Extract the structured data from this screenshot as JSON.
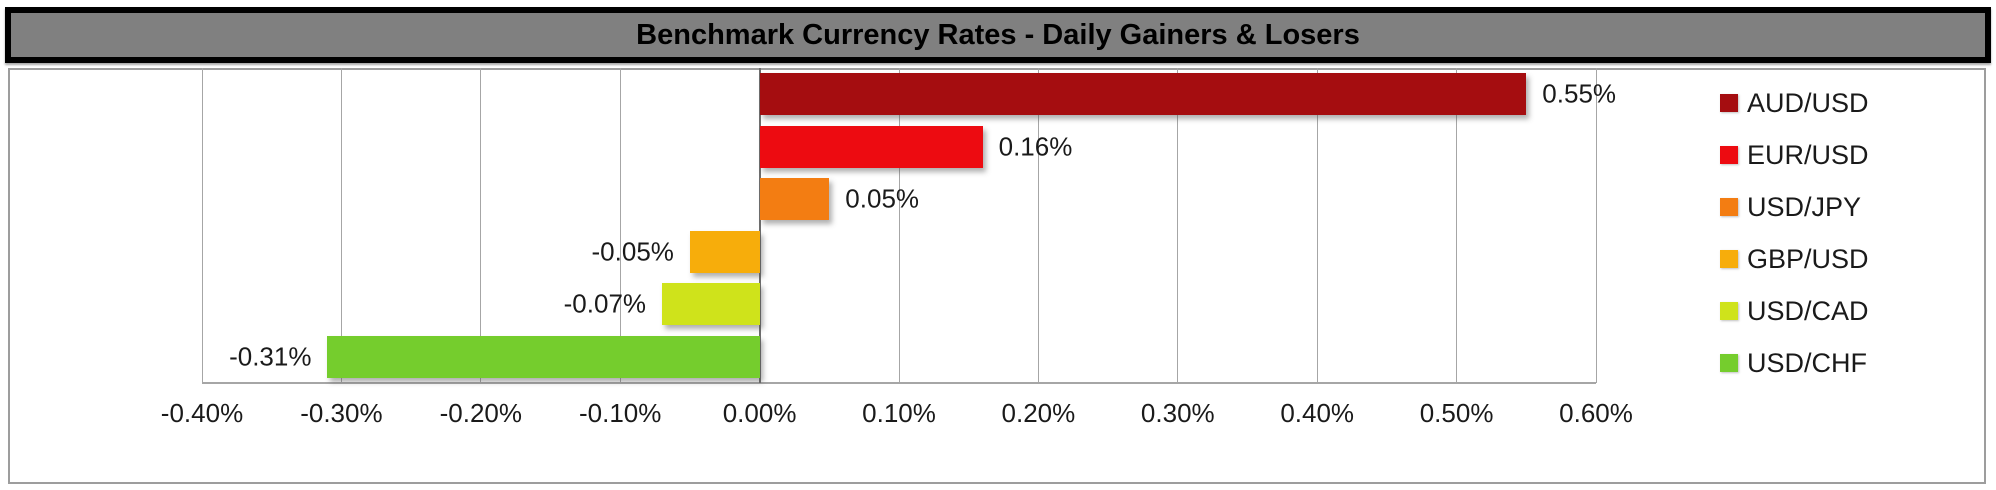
{
  "title": "Benchmark Currency Rates - Daily Gainers & Losers",
  "colors": {
    "title_bg": "#808080",
    "title_border": "#000000",
    "chart_border": "#9d9d9d",
    "gridline": "#a6a6a6",
    "zero_line": "#6e6e6e",
    "label_text": "#1a1a1a"
  },
  "chart_data": {
    "type": "bar",
    "orientation": "horizontal",
    "title": "Benchmark Currency Rates - Daily Gainers & Losers",
    "categories": [
      "AUD/USD",
      "EUR/USD",
      "USD/JPY",
      "GBP/USD",
      "USD/CAD",
      "USD/CHF"
    ],
    "values_pct": [
      0.55,
      0.16,
      0.05,
      -0.05,
      -0.07,
      -0.31
    ],
    "data_labels": [
      "0.55%",
      "0.16%",
      "0.05%",
      "-0.05%",
      "-0.07%",
      "-0.31%"
    ],
    "bar_colors": [
      "#A50D10",
      "#ED0B11",
      "#F37D12",
      "#F7AD0B",
      "#CFE31B",
      "#75CD2D"
    ],
    "grid": true,
    "x_axis": {
      "min_pct": -0.4,
      "max_pct": 0.6,
      "tick_step_pct": 0.1,
      "tick_labels": [
        "-0.40%",
        "-0.30%",
        "-0.20%",
        "-0.10%",
        "0.00%",
        "0.10%",
        "0.20%",
        "0.30%",
        "0.40%",
        "0.50%",
        "0.60%"
      ]
    },
    "legend": {
      "position": "right",
      "entries": [
        {
          "label": "AUD/USD",
          "color": "#A50D10"
        },
        {
          "label": "EUR/USD",
          "color": "#ED0B11"
        },
        {
          "label": "USD/JPY",
          "color": "#F37D12"
        },
        {
          "label": "GBP/USD",
          "color": "#F7AD0B"
        },
        {
          "label": "USD/CAD",
          "color": "#CFE31B"
        },
        {
          "label": "USD/CHF",
          "color": "#75CD2D"
        }
      ]
    }
  }
}
